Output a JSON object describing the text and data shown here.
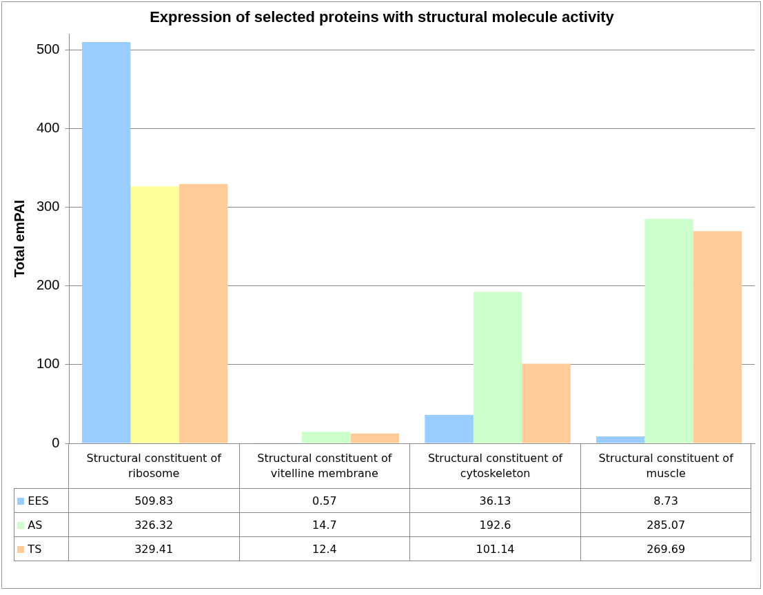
{
  "chart_data": {
    "type": "bar",
    "title": "Expression of selected proteins with structural molecule activity",
    "ylabel": "Total emPAI",
    "categories": [
      "Structural constituent of ribosome",
      "Structural constituent of vitelline membrane",
      "Structural constituent of cytoskeleton",
      "Structural constituent of muscle"
    ],
    "series": [
      {
        "name": "EES",
        "color": "#99ccff",
        "values": [
          509.83,
          0.57,
          36.13,
          8.73
        ]
      },
      {
        "name": "AS",
        "color": "#ccffcc",
        "colors": [
          "#ffff99",
          "#ccffcc",
          "#ccffcc",
          "#ccffcc"
        ],
        "values": [
          326.32,
          14.7,
          192.6,
          285.07
        ]
      },
      {
        "name": "TS",
        "color": "#ffcc99",
        "values": [
          329.41,
          12.4,
          101.14,
          269.69
        ]
      }
    ],
    "ylim": [
      0,
      520
    ],
    "yticks": [
      0,
      100,
      200,
      300,
      400,
      500
    ],
    "grid": "y",
    "legend": "bottom",
    "data_labels": true
  }
}
